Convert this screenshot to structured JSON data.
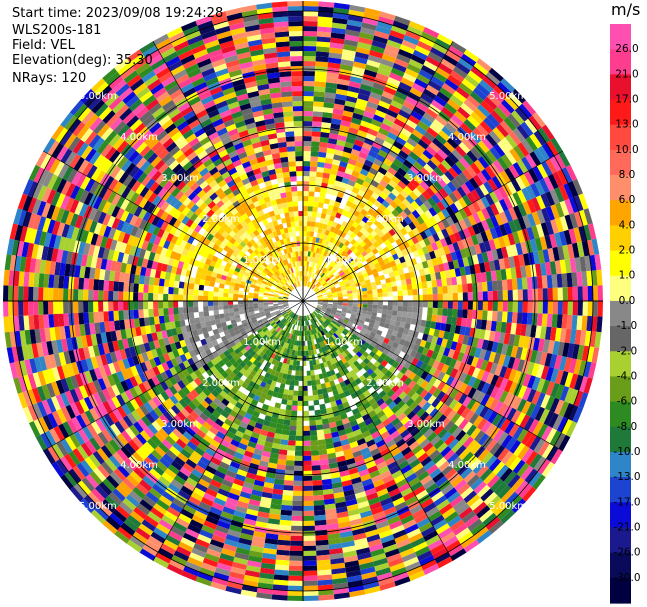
{
  "header": {
    "start_time": "Start time: 2023/09/08 19:24:28",
    "instrument": "WLS200s-181",
    "field": "Field: VEL",
    "elevation": "Elevation(deg): 35.30",
    "nrays": "NRays: 120"
  },
  "chart_data": {
    "type": "heatmap",
    "projection": "polar PPI",
    "field": "VEL",
    "nrays": 120,
    "range_labels": [
      {
        "text": "1.00km",
        "km": 1
      },
      {
        "text": "2.00km",
        "km": 2
      },
      {
        "text": "3.00km",
        "km": 3
      },
      {
        "text": "4.00km",
        "km": 4
      },
      {
        "text": "5.00km",
        "km": 5
      }
    ],
    "colorbar": {
      "title": "m/s",
      "ticks": [
        "26.0",
        "21.0",
        "17.0",
        "13.0",
        "10.0",
        "8.0",
        "6.0",
        "4.0",
        "2.0",
        "1.0",
        "0.0",
        "-1.0",
        "-2.0",
        "-4.0",
        "-6.0",
        "-8.0",
        "-10.0",
        "-13.0",
        "-17.0",
        "-21.0",
        "-26.0",
        "-30.0"
      ],
      "colors": [
        "#ff4fb1",
        "#ff3d8e",
        "#e8102c",
        "#ff1a1a",
        "#ff4a3d",
        "#ff6a5a",
        "#ff8f6a",
        "#ffa500",
        "#ffd000",
        "#ffff00",
        "#ffff7f",
        "#888888",
        "#666666",
        "#a8d030",
        "#6a9e1a",
        "#2e8b22",
        "#1f7a3a",
        "#2e85c8",
        "#1d44d0",
        "#0b0bd8",
        "#1a1a8e",
        "#0a0a5a",
        "#000040"
      ]
    }
  }
}
